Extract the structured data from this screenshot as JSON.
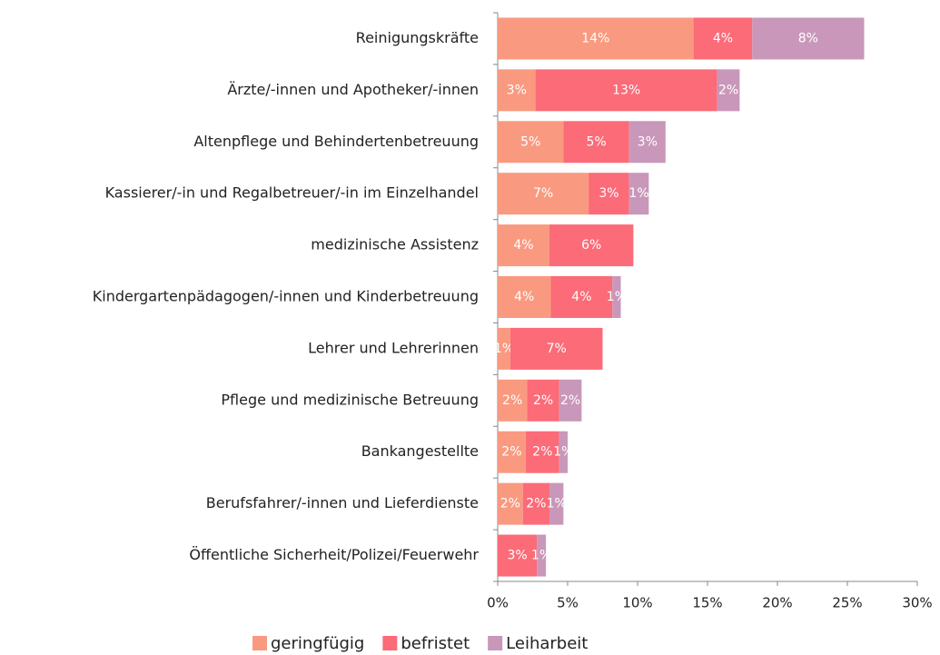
{
  "chart_data": {
    "type": "stacked_barh",
    "categories": [
      "Reinigungskräfte",
      "Ärzte/-innen und Apotheker/-innen",
      "Altenpflege und Behindertenbetreuung",
      "Kassierer/-in und Regalbetreuer/-in im Einzelhandel",
      "medizinische Assistenz",
      "Kindergartenpädagogen/-innen und Kinderbetreuung",
      "Lehrer und Lehrerinnen",
      "Pflege und medizinische Betreuung",
      "Bankangestellte",
      "Berufsfahrer/-innen und Lieferdienste",
      "Öffentliche Sicherheit/Polizei/Feuerwehr"
    ],
    "series": [
      {
        "name": "geringfügig",
        "color": "#f99a80",
        "values": [
          14.0,
          2.7,
          4.7,
          6.5,
          3.7,
          3.8,
          0.9,
          2.1,
          2.0,
          1.8,
          0
        ],
        "value_labels": [
          "14%",
          "3%",
          "5%",
          "7%",
          "4%",
          "4%",
          "1%",
          "2%",
          "2%",
          "2%",
          null
        ]
      },
      {
        "name": "befristet",
        "color": "#fb6b78",
        "values": [
          4.2,
          13.0,
          4.7,
          2.9,
          6.0,
          4.4,
          6.6,
          2.3,
          2.4,
          1.9,
          2.8
        ],
        "value_labels": [
          "4%",
          "13%",
          "5%",
          "3%",
          "6%",
          "4%",
          "7%",
          "2%",
          "2%",
          "2%",
          "3%"
        ]
      },
      {
        "name": "Leiharbeit",
        "color": "#c997b9",
        "values": [
          8.0,
          1.6,
          2.6,
          1.4,
          0,
          0.6,
          0,
          1.6,
          0.6,
          1.0,
          0.65
        ],
        "value_labels": [
          "8%",
          "2%",
          "3%",
          "1%",
          null,
          "1%",
          null,
          "2%",
          "1%",
          "1%",
          "1%"
        ]
      }
    ],
    "xlim": [
      0,
      30
    ],
    "xticks": [
      {
        "value": 0,
        "label": "0%"
      },
      {
        "value": 5,
        "label": "5%"
      },
      {
        "value": 10,
        "label": "10%"
      },
      {
        "value": 15,
        "label": "15%"
      },
      {
        "value": 20,
        "label": "20%"
      },
      {
        "value": 25,
        "label": "25%"
      },
      {
        "value": 30,
        "label": "30%"
      }
    ],
    "legend": "bottom"
  }
}
